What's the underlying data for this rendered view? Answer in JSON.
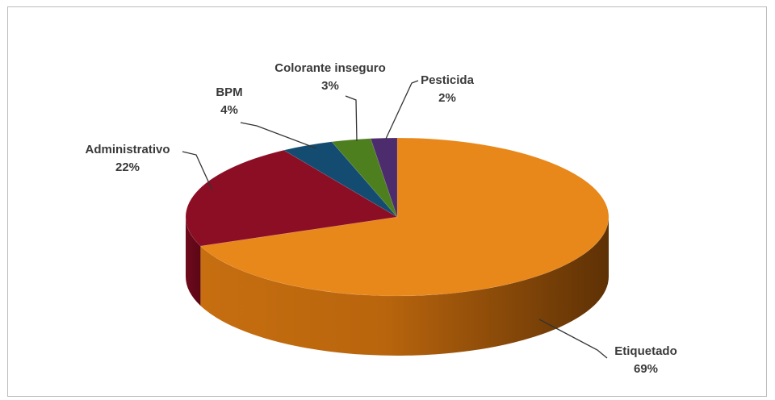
{
  "chart_data": {
    "type": "pie",
    "title": "",
    "slices": [
      {
        "label": "Etiquetado",
        "value": 69,
        "value_label": "69%",
        "color": "#E8871A"
      },
      {
        "label": "Administrativo",
        "value": 22,
        "value_label": "22%",
        "color": "#8B0E25"
      },
      {
        "label": "BPM",
        "value": 4,
        "value_label": "4%",
        "color": "#144B70"
      },
      {
        "label": "Colorante inseguro",
        "value": 3,
        "value_label": "3%",
        "color": "#4E7F1F"
      },
      {
        "label": "Pesticida",
        "value": 2,
        "value_label": "2%",
        "color": "#4D2C6E"
      }
    ],
    "style": "3d-exploded-tilt",
    "legend": "none"
  }
}
